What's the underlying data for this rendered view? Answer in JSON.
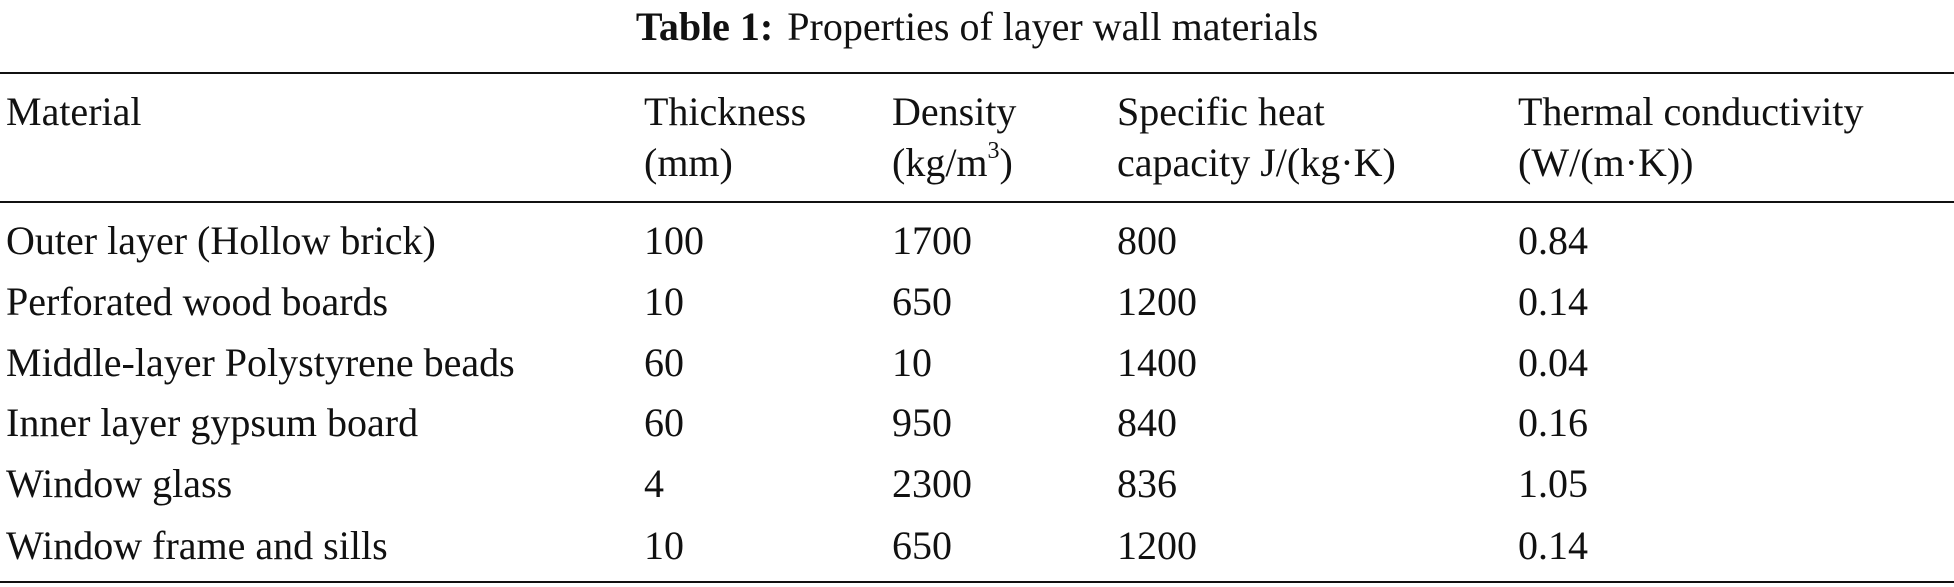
{
  "caption": {
    "label": "Table 1:",
    "text": "Properties of layer wall materials"
  },
  "table": {
    "headers": [
      {
        "line1": "Material",
        "line2": ""
      },
      {
        "line1": "Thickness",
        "line2": "(mm)"
      },
      {
        "line1": "Density",
        "line2_pre": "(kg/m",
        "line2_sup": "3",
        "line2_post": ")"
      },
      {
        "line1": "Specific heat",
        "line2": "capacity J/(kg·K)"
      },
      {
        "line1": "Thermal conductivity",
        "line2": "(W/(m·K))"
      }
    ],
    "rows": [
      [
        "Outer layer (Hollow brick)",
        "100",
        "1700",
        "800",
        "0.84"
      ],
      [
        "Perforated wood boards",
        "10",
        "650",
        "1200",
        "0.14"
      ],
      [
        "Middle-layer Polystyrene beads",
        "60",
        "10",
        "1400",
        "0.04"
      ],
      [
        "Inner layer gypsum board",
        "60",
        "950",
        "840",
        "0.16"
      ],
      [
        "Window glass",
        "4",
        "2300",
        "836",
        "1.05"
      ],
      [
        "Window frame and sills",
        "10",
        "650",
        "1200",
        "0.14"
      ]
    ]
  }
}
